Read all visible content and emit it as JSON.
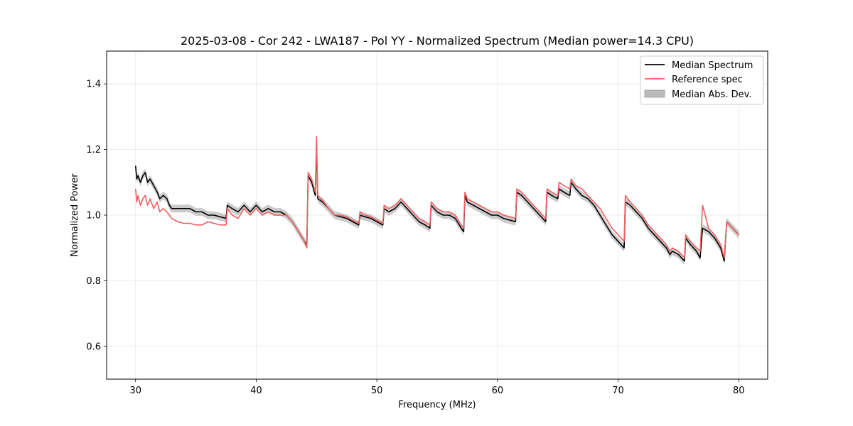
{
  "chart_data": {
    "type": "line",
    "title": "2025-03-08 - Cor 242 - LWA187 - Pol YY - Normalized Spectrum (Median power=14.3 CPU)",
    "xlabel": "Frequency (MHz)",
    "ylabel": "Normalized Power",
    "xlim": [
      27.6,
      82.4
    ],
    "ylim": [
      0.5,
      1.5
    ],
    "xticks": [
      30,
      40,
      50,
      60,
      70,
      80
    ],
    "yticks": [
      0.6,
      0.8,
      1.0,
      1.2,
      1.4
    ],
    "xtick_labels": [
      "30",
      "40",
      "50",
      "60",
      "70",
      "80"
    ],
    "ytick_labels": [
      "0.6",
      "0.8",
      "1.0",
      "1.2",
      "1.4"
    ],
    "grid": true,
    "legend_position": "top-right",
    "colors": {
      "median": "#000000",
      "reference": "#f06060",
      "mad": "#aaaaaa",
      "overlap": "#8b0000"
    },
    "series": [
      {
        "name": "Median Spectrum",
        "x": [
          30.0,
          30.1,
          30.2,
          30.4,
          30.6,
          30.8,
          31.0,
          31.2,
          31.5,
          31.8,
          32.0,
          32.3,
          32.6,
          32.8,
          33.0,
          33.5,
          34.0,
          34.5,
          35.0,
          35.5,
          36.0,
          36.5,
          37.0,
          37.5,
          37.6,
          38.0,
          38.5,
          39.0,
          39.5,
          40.0,
          40.5,
          41.0,
          41.5,
          42.0,
          42.5,
          43.0,
          43.5,
          44.0,
          44.2,
          44.3,
          44.6,
          44.9,
          45.0,
          45.1,
          45.5,
          46.0,
          46.5,
          47.0,
          47.5,
          48.0,
          48.5,
          48.6,
          49.0,
          49.5,
          50.0,
          50.5,
          50.6,
          51.0,
          51.5,
          52.0,
          52.5,
          53.0,
          53.5,
          54.0,
          54.4,
          54.5,
          55.0,
          55.5,
          56.0,
          56.5,
          57.0,
          57.2,
          57.3,
          57.5,
          58.0,
          58.5,
          59.0,
          59.5,
          60.0,
          60.5,
          61.0,
          61.5,
          61.6,
          62.0,
          62.5,
          63.0,
          63.5,
          64.0,
          64.1,
          64.5,
          65.0,
          65.1,
          65.5,
          66.0,
          66.1,
          66.5,
          67.0,
          67.5,
          68.0,
          68.5,
          69.0,
          69.5,
          70.0,
          70.5,
          70.6,
          71.0,
          71.5,
          72.0,
          72.5,
          73.0,
          73.5,
          74.0,
          74.3,
          74.5,
          75.0,
          75.5,
          75.6,
          76.0,
          76.5,
          76.8,
          77.0,
          77.5,
          78.0,
          78.5,
          78.8,
          79.0,
          79.5,
          80.0
        ],
        "values": [
          1.15,
          1.11,
          1.12,
          1.1,
          1.12,
          1.13,
          1.1,
          1.11,
          1.09,
          1.07,
          1.05,
          1.06,
          1.05,
          1.03,
          1.02,
          1.02,
          1.02,
          1.02,
          1.01,
          1.01,
          1.0,
          1.0,
          0.995,
          0.99,
          1.03,
          1.02,
          1.01,
          1.03,
          1.01,
          1.03,
          1.01,
          1.02,
          1.01,
          1.01,
          1.0,
          0.98,
          0.95,
          0.92,
          0.91,
          1.12,
          1.1,
          1.06,
          1.22,
          1.05,
          1.04,
          1.02,
          1.0,
          0.995,
          0.99,
          0.98,
          0.97,
          1.0,
          0.995,
          0.99,
          0.98,
          0.97,
          1.02,
          1.01,
          1.02,
          1.04,
          1.02,
          1.0,
          0.98,
          0.97,
          0.96,
          1.03,
          1.01,
          1.0,
          1.0,
          0.99,
          0.96,
          0.95,
          1.06,
          1.04,
          1.03,
          1.02,
          1.01,
          1.0,
          1.0,
          0.99,
          0.985,
          0.98,
          1.07,
          1.06,
          1.04,
          1.02,
          1.0,
          0.98,
          1.07,
          1.06,
          1.05,
          1.08,
          1.07,
          1.06,
          1.1,
          1.08,
          1.06,
          1.05,
          1.03,
          1.0,
          0.97,
          0.94,
          0.92,
          0.9,
          1.04,
          1.03,
          1.01,
          0.99,
          0.96,
          0.94,
          0.92,
          0.9,
          0.88,
          0.89,
          0.88,
          0.86,
          0.93,
          0.91,
          0.89,
          0.87,
          0.96,
          0.95,
          0.93,
          0.9,
          0.86,
          0.98,
          0.96,
          0.94
        ]
      },
      {
        "name": "Reference spec",
        "x": [
          30.0,
          30.1,
          30.2,
          30.4,
          30.6,
          30.8,
          31.0,
          31.2,
          31.5,
          31.8,
          32.0,
          32.3,
          32.6,
          32.8,
          33.0,
          33.5,
          34.0,
          34.5,
          35.0,
          35.5,
          36.0,
          36.5,
          37.0,
          37.5,
          37.6,
          38.0,
          38.5,
          39.0,
          39.5,
          40.0,
          40.5,
          41.0,
          41.5,
          42.0,
          42.5,
          43.0,
          43.5,
          44.0,
          44.2,
          44.3,
          44.6,
          44.9,
          45.0,
          45.1,
          45.5,
          46.0,
          46.5,
          47.0,
          47.5,
          48.0,
          48.5,
          48.6,
          49.0,
          49.5,
          50.0,
          50.5,
          50.6,
          51.0,
          51.5,
          52.0,
          52.5,
          53.0,
          53.5,
          54.0,
          54.4,
          54.5,
          55.0,
          55.5,
          56.0,
          56.5,
          57.0,
          57.2,
          57.3,
          57.5,
          58.0,
          58.5,
          59.0,
          59.5,
          60.0,
          60.5,
          61.0,
          61.5,
          61.6,
          62.0,
          62.5,
          63.0,
          63.5,
          64.0,
          64.1,
          64.5,
          65.0,
          65.1,
          65.5,
          66.0,
          66.1,
          66.5,
          67.0,
          67.5,
          68.0,
          68.5,
          69.0,
          69.5,
          70.0,
          70.5,
          70.6,
          71.0,
          71.5,
          72.0,
          72.5,
          73.0,
          73.5,
          74.0,
          74.3,
          74.5,
          75.0,
          75.5,
          75.6,
          76.0,
          76.5,
          76.8,
          77.0,
          77.5,
          78.0,
          78.5,
          78.8,
          79.0,
          79.5,
          80.0
        ],
        "values": [
          1.08,
          1.04,
          1.06,
          1.03,
          1.05,
          1.06,
          1.03,
          1.05,
          1.02,
          1.04,
          1.01,
          1.02,
          1.01,
          1.0,
          0.99,
          0.98,
          0.975,
          0.975,
          0.97,
          0.97,
          0.98,
          0.975,
          0.97,
          0.97,
          1.02,
          1.0,
          0.99,
          1.02,
          1.0,
          1.02,
          1.0,
          1.01,
          1.0,
          1.0,
          1.0,
          0.98,
          0.95,
          0.92,
          0.9,
          1.13,
          1.11,
          1.07,
          1.24,
          1.06,
          1.045,
          1.02,
          1.0,
          1.0,
          0.995,
          0.985,
          0.975,
          1.01,
          1.0,
          0.995,
          0.985,
          0.975,
          1.03,
          1.02,
          1.03,
          1.05,
          1.03,
          1.01,
          0.99,
          0.98,
          0.97,
          1.04,
          1.02,
          1.01,
          1.01,
          1.0,
          0.97,
          0.96,
          1.07,
          1.05,
          1.04,
          1.03,
          1.02,
          1.01,
          1.01,
          1.0,
          0.995,
          0.99,
          1.08,
          1.07,
          1.05,
          1.03,
          1.01,
          0.99,
          1.08,
          1.07,
          1.06,
          1.1,
          1.09,
          1.08,
          1.11,
          1.09,
          1.08,
          1.06,
          1.04,
          1.02,
          0.99,
          0.96,
          0.94,
          0.92,
          1.06,
          1.04,
          1.02,
          1.0,
          0.97,
          0.95,
          0.93,
          0.91,
          0.89,
          0.9,
          0.89,
          0.87,
          0.94,
          0.92,
          0.9,
          0.89,
          1.03,
          0.96,
          0.94,
          0.91,
          0.87,
          0.98,
          0.96,
          0.94
        ]
      },
      {
        "name": "Median Abs. Dev.",
        "type": "band",
        "half_width": 0.012
      }
    ]
  }
}
